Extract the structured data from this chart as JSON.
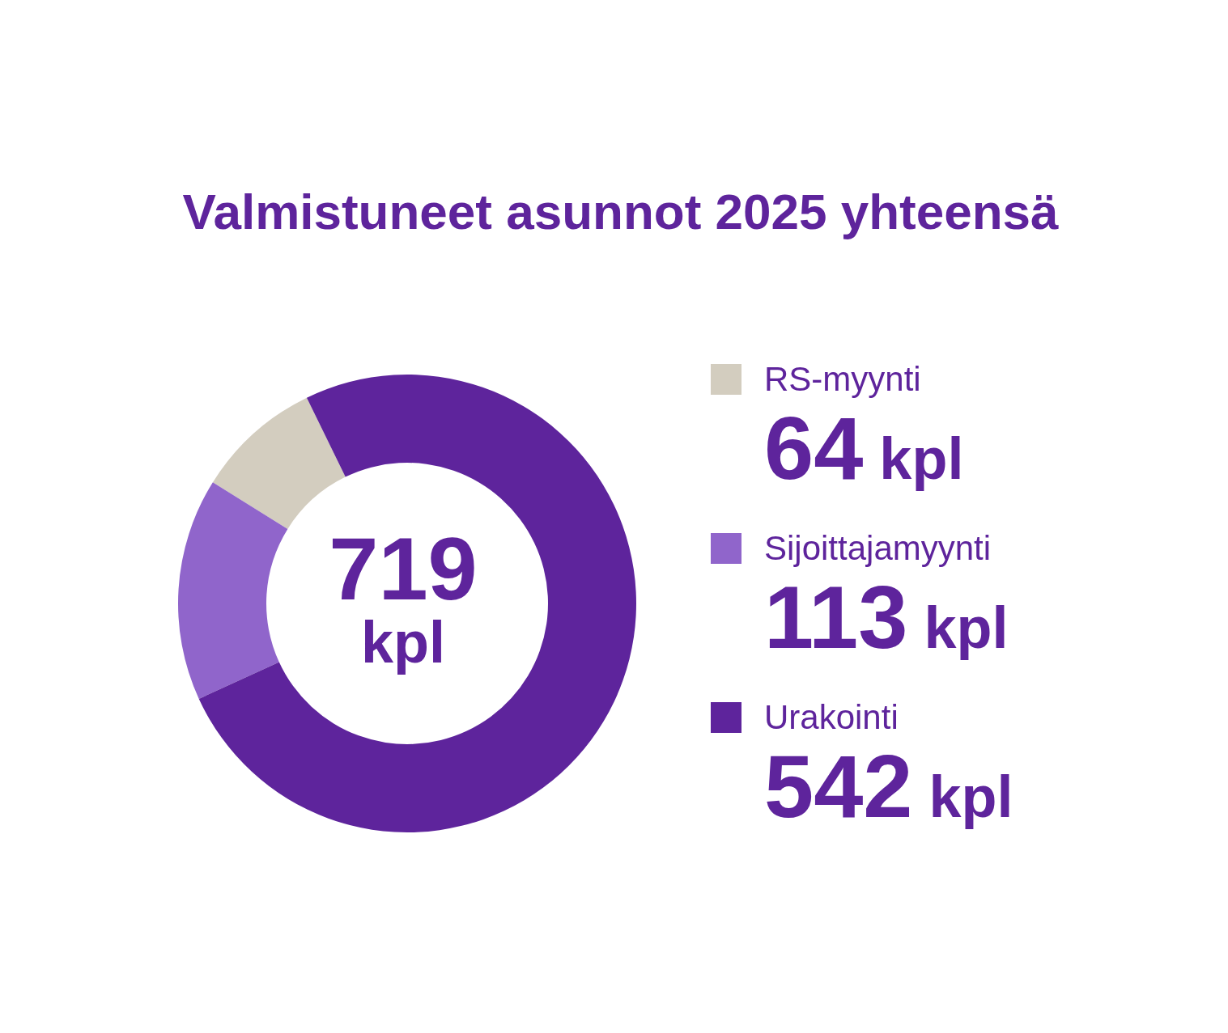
{
  "chart_data": {
    "type": "donut",
    "title": "Valmistuneet asunnot 2025 yhteensä",
    "categories": [
      "RS-myynti",
      "Sijoittajamyynti",
      "Urakointi"
    ],
    "values": [
      64,
      113,
      542
    ],
    "colors": [
      "#d3cdbf",
      "#9065cb",
      "#5e249c"
    ],
    "value_labels": [
      "64 kpl",
      "113 kpl",
      "542 kpl"
    ],
    "annotations": [
      "719 kpl"
    ],
    "legend": "right"
  }
}
